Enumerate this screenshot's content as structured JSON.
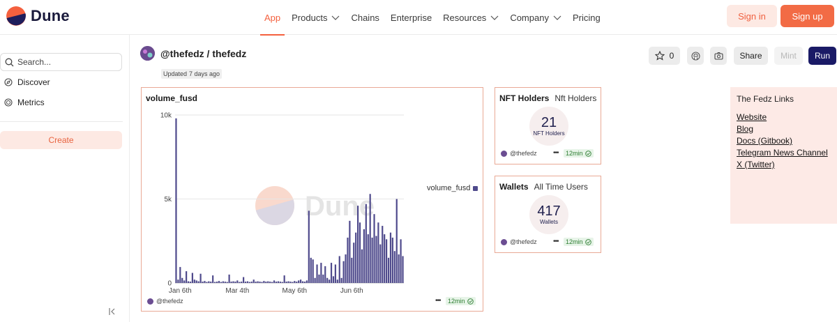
{
  "brand": {
    "name": "Dune",
    "colors": {
      "accent": "#f4603e",
      "navy": "#1a1a66",
      "bar": "#4f4a8c"
    }
  },
  "nav": {
    "items": [
      {
        "label": "App",
        "active": true,
        "dropdown": false
      },
      {
        "label": "Products",
        "active": false,
        "dropdown": true
      },
      {
        "label": "Chains",
        "active": false,
        "dropdown": false
      },
      {
        "label": "Enterprise",
        "active": false,
        "dropdown": false
      },
      {
        "label": "Resources",
        "active": false,
        "dropdown": true
      },
      {
        "label": "Company",
        "active": false,
        "dropdown": true
      },
      {
        "label": "Pricing",
        "active": false,
        "dropdown": false
      }
    ],
    "signin": "Sign in",
    "signup": "Sign up"
  },
  "sidebar": {
    "search_placeholder": "Search...",
    "items": [
      {
        "label": "Discover",
        "icon": "compass-icon"
      },
      {
        "label": "Metrics",
        "icon": "metrics-icon"
      }
    ],
    "create": "Create"
  },
  "dashboard": {
    "title": "@thefedz / thefedz",
    "updated_label": "Updated",
    "updated_ago": "7 days ago",
    "stars": "0",
    "share": "Share",
    "mint": "Mint",
    "run": "Run"
  },
  "chart_card": {
    "user": "@thefedz",
    "age": "12min",
    "watermark": "Dune"
  },
  "chart_data": {
    "type": "bar",
    "title": "volume_fusd",
    "xlabel": "",
    "ylabel": "",
    "ylim": [
      0,
      10000
    ],
    "yticks": [
      {
        "value": 0,
        "label": "0"
      },
      {
        "value": 5000,
        "label": "5k"
      },
      {
        "value": 10000,
        "label": "10k"
      }
    ],
    "xticks": [
      {
        "index": 2,
        "label": "Jan 6th"
      },
      {
        "index": 30,
        "label": "Mar 4th"
      },
      {
        "index": 58,
        "label": "May 6th"
      },
      {
        "index": 86,
        "label": "Jun 6th"
      }
    ],
    "legend": {
      "position": "right",
      "label": "volume_fusd"
    },
    "series": [
      {
        "name": "volume_fusd",
        "values": [
          9800,
          200,
          950,
          300,
          150,
          700,
          100,
          80,
          600,
          200,
          150,
          100,
          550,
          80,
          120,
          60,
          100,
          80,
          450,
          60,
          80,
          120,
          60,
          100,
          80,
          60,
          500,
          80,
          100,
          80,
          150,
          60,
          80,
          350,
          80,
          100,
          60,
          80,
          200,
          80,
          100,
          80,
          60,
          120,
          80,
          100,
          80,
          60,
          150,
          80,
          100,
          80,
          60,
          450,
          80,
          100,
          80,
          60,
          120,
          80,
          150,
          200,
          100,
          80,
          150,
          4300,
          1500,
          1400,
          300,
          1100,
          500,
          1200,
          500,
          1000,
          300,
          200,
          1200,
          400,
          1100,
          200,
          1600,
          300,
          1300,
          1700,
          2700,
          3700,
          1500,
          2400,
          3000,
          4600,
          3600,
          2000,
          3200,
          4700,
          2900,
          5300,
          2700,
          4100,
          2800,
          3600,
          2300,
          3400,
          2900,
          2600,
          1500,
          3000,
          2700,
          1900,
          5000,
          1700,
          2600,
          1600
        ]
      }
    ]
  },
  "counters": [
    {
      "title": "NFT Holders",
      "subtitle": "Nft Holders",
      "value": "21",
      "label": "NFT Holders",
      "user": "@thefedz",
      "age": "12min"
    },
    {
      "title": "Wallets",
      "subtitle": "All Time Users",
      "value": "417",
      "label": "Wallets",
      "user": "@thefedz",
      "age": "12min"
    }
  ],
  "links_panel": {
    "title": "The Fedz Links",
    "links": [
      "Website",
      "Blog",
      "Docs (Gitbook)",
      "Telegram News Channel",
      "X (Twitter)"
    ]
  }
}
